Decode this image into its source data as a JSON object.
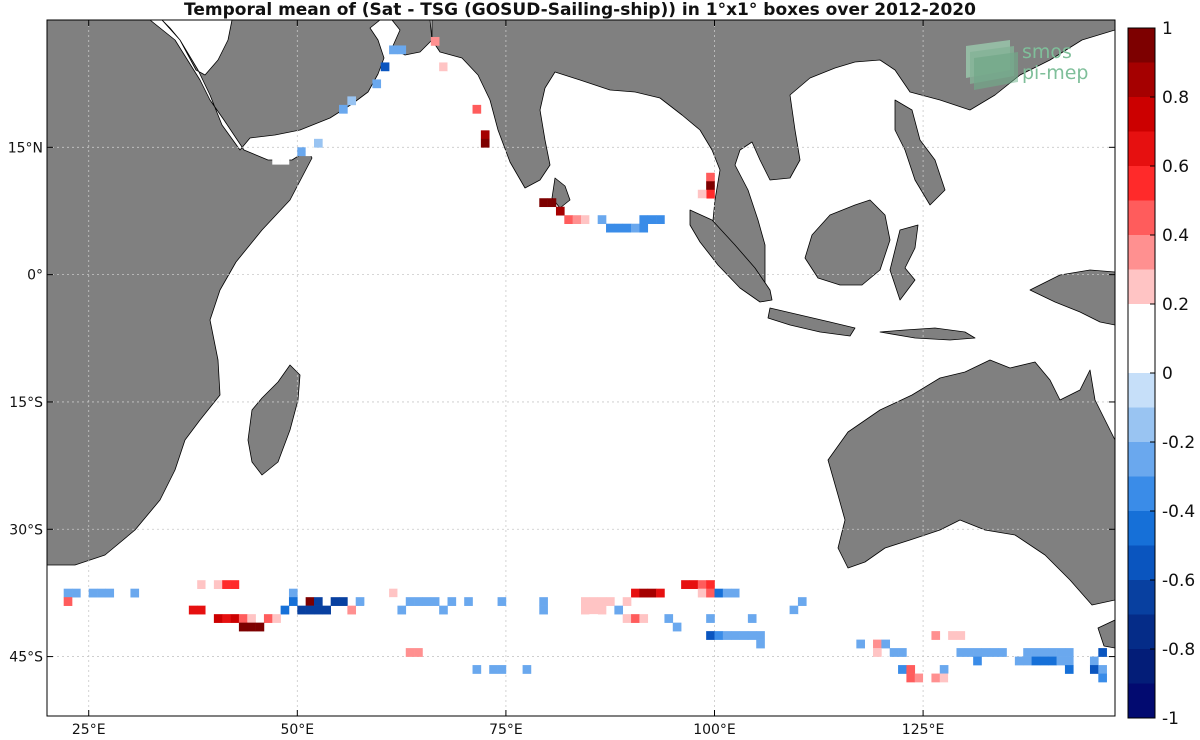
{
  "title": "Temporal mean of (Sat - TSG (GOSUD-Sailing-ship)) in 1°x1° boxes over 2012-2020",
  "logo": {
    "line1": "smos",
    "line2": "pi-mep",
    "color": "#7fbf9a"
  },
  "colors": {
    "land": "#808080",
    "grid": "#c8c8c8",
    "frame": "#000000"
  },
  "chart_data": {
    "type": "heatmap",
    "title": "Temporal mean of (Sat - TSG (GOSUD-Sailing-ship)) in 1°x1° boxes over 2012-2020",
    "xlim": [
      20,
      148
    ],
    "ylim": [
      -52,
      30
    ],
    "lon_ticks": [
      {
        "value": 25,
        "label": "25°E"
      },
      {
        "value": 50,
        "label": "50°E"
      },
      {
        "value": 75,
        "label": "75°E"
      },
      {
        "value": 100,
        "label": "100°E"
      },
      {
        "value": 125,
        "label": "125°E"
      }
    ],
    "lat_ticks": [
      {
        "value": 15,
        "label": "15°N"
      },
      {
        "value": 0,
        "label": "0°"
      },
      {
        "value": -15,
        "label": "15°S"
      },
      {
        "value": -30,
        "label": "30°S"
      },
      {
        "value": -45,
        "label": "45°S"
      }
    ],
    "colorbar": {
      "min": -1,
      "max": 1,
      "ticks": [
        "1",
        "0.8",
        "0.6",
        "0.4",
        "0.2",
        "0",
        "-0.2",
        "-0.4",
        "-0.6",
        "-0.8",
        "-1"
      ],
      "tick_values": [
        1,
        0.8,
        0.6,
        0.4,
        0.2,
        0,
        -0.2,
        -0.4,
        -0.6,
        -0.8,
        -1
      ],
      "colors": [
        "#7d0000",
        "#a50000",
        "#cc0000",
        "#e61010",
        "#ff2a2a",
        "#ff5c5c",
        "#ff9090",
        "#ffc4c4",
        "#ffffff",
        "#ffffff",
        "#c6dff9",
        "#99c4f2",
        "#6aa8ee",
        "#3a8ce8",
        "#1670d8",
        "#0a55bf",
        "#0840a0",
        "#052c88",
        "#031d78",
        "#020a70"
      ]
    },
    "cells": [
      [
        66,
        27,
        0.35
      ],
      [
        61,
        26,
        -0.25
      ],
      [
        62,
        26,
        -0.25
      ],
      [
        60,
        24,
        -0.55
      ],
      [
        67,
        24,
        0.3
      ],
      [
        68,
        24,
        0.2
      ],
      [
        59,
        22,
        -0.25
      ],
      [
        70,
        21,
        0.2
      ],
      [
        56,
        20,
        -0.15
      ],
      [
        71,
        19,
        0.45
      ],
      [
        55,
        19,
        -0.2
      ],
      [
        71,
        17,
        0.2
      ],
      [
        72,
        16,
        0.85
      ],
      [
        52,
        15,
        -0.15
      ],
      [
        72,
        15,
        0.9
      ],
      [
        50,
        14,
        -0.2
      ],
      [
        51,
        14,
        0.2
      ],
      [
        47,
        13,
        0.2
      ],
      [
        48,
        13,
        0.2
      ],
      [
        99,
        11,
        0.5
      ],
      [
        99,
        10,
        0.9
      ],
      [
        99,
        9,
        0.6
      ],
      [
        98,
        9,
        0.25
      ],
      [
        79,
        8,
        0.95
      ],
      [
        80,
        8,
        0.95
      ],
      [
        81,
        7,
        0.8
      ],
      [
        98,
        8,
        0.2
      ],
      [
        82,
        6,
        0.45
      ],
      [
        83,
        6,
        0.35
      ],
      [
        84,
        6,
        0.25
      ],
      [
        85,
        6,
        0.2
      ],
      [
        86,
        6,
        -0.25
      ],
      [
        91,
        6,
        -0.35
      ],
      [
        92,
        6,
        -0.35
      ],
      [
        93,
        6,
        -0.3
      ],
      [
        87,
        5,
        -0.35
      ],
      [
        88,
        5,
        -0.35
      ],
      [
        89,
        5,
        -0.35
      ],
      [
        90,
        5,
        -0.25
      ],
      [
        91,
        5,
        -0.3
      ],
      [
        32,
        -37,
        0.2
      ],
      [
        38,
        -37,
        0.3
      ],
      [
        39,
        -37,
        0.2
      ],
      [
        40,
        -37,
        0.3
      ],
      [
        41,
        -37,
        0.55
      ],
      [
        42,
        -37,
        0.55
      ],
      [
        45,
        -37,
        0.2
      ],
      [
        96,
        -37,
        0.7
      ],
      [
        97,
        -37,
        0.7
      ],
      [
        98,
        -37,
        0.5
      ],
      [
        99,
        -37,
        0.6
      ],
      [
        22,
        -38,
        -0.2
      ],
      [
        23,
        -38,
        -0.2
      ],
      [
        25,
        -38,
        -0.2
      ],
      [
        26,
        -38,
        -0.2
      ],
      [
        27,
        -38,
        -0.2
      ],
      [
        30,
        -38,
        -0.2
      ],
      [
        32,
        -38,
        0.2
      ],
      [
        46,
        -38,
        0.2
      ],
      [
        49,
        -38,
        -0.25
      ],
      [
        58,
        -38,
        0.2
      ],
      [
        60,
        -38,
        0.2
      ],
      [
        61,
        -38,
        0.3
      ],
      [
        62,
        -38,
        0.2
      ],
      [
        90,
        -38,
        0.7
      ],
      [
        91,
        -38,
        0.8
      ],
      [
        92,
        -38,
        0.8
      ],
      [
        93,
        -38,
        0.7
      ],
      [
        98,
        -38,
        0.3
      ],
      [
        99,
        -38,
        0.45
      ],
      [
        100,
        -38,
        -0.4
      ],
      [
        101,
        -38,
        -0.25
      ],
      [
        102,
        -38,
        -0.2
      ],
      [
        103,
        -38,
        0.2
      ],
      [
        104,
        -38,
        0.2
      ],
      [
        22,
        -39,
        0.45
      ],
      [
        49,
        -39,
        -0.4
      ],
      [
        51,
        -39,
        0.95
      ],
      [
        52,
        -39,
        -0.65
      ],
      [
        54,
        -39,
        -0.65
      ],
      [
        55,
        -39,
        -0.65
      ],
      [
        57,
        -39,
        -0.2
      ],
      [
        61,
        -39,
        0.2
      ],
      [
        62,
        -39,
        0.2
      ],
      [
        63,
        -39,
        -0.2
      ],
      [
        64,
        -39,
        -0.2
      ],
      [
        65,
        -39,
        -0.25
      ],
      [
        66,
        -39,
        -0.25
      ],
      [
        68,
        -39,
        -0.2
      ],
      [
        70,
        -39,
        -0.2
      ],
      [
        74,
        -39,
        -0.2
      ],
      [
        79,
        -39,
        -0.2
      ],
      [
        84,
        -39,
        0.25
      ],
      [
        85,
        -39,
        0.3
      ],
      [
        86,
        -39,
        0.25
      ],
      [
        87,
        -39,
        0.3
      ],
      [
        89,
        -39,
        0.3
      ],
      [
        110,
        -39,
        -0.2
      ],
      [
        37,
        -40,
        0.65
      ],
      [
        38,
        -40,
        0.65
      ],
      [
        39,
        -40,
        0.2
      ],
      [
        48,
        -40,
        -0.4
      ],
      [
        50,
        -40,
        -0.65
      ],
      [
        51,
        -40,
        -0.65
      ],
      [
        52,
        -40,
        -0.65
      ],
      [
        53,
        -40,
        -0.65
      ],
      [
        56,
        -40,
        0.4
      ],
      [
        58,
        -40,
        0.2
      ],
      [
        62,
        -40,
        -0.2
      ],
      [
        67,
        -40,
        -0.2
      ],
      [
        79,
        -40,
        -0.2
      ],
      [
        84,
        -40,
        0.3
      ],
      [
        85,
        -40,
        0.3
      ],
      [
        86,
        -40,
        0.3
      ],
      [
        88,
        -40,
        -0.2
      ],
      [
        109,
        -40,
        -0.2
      ],
      [
        40,
        -41,
        0.75
      ],
      [
        41,
        -41,
        0.7
      ],
      [
        42,
        -41,
        0.75
      ],
      [
        43,
        -41,
        0.5
      ],
      [
        44,
        -41,
        0.3
      ],
      [
        46,
        -41,
        0.45
      ],
      [
        47,
        -41,
        0.3
      ],
      [
        85,
        -41,
        0.2
      ],
      [
        89,
        -41,
        0.3
      ],
      [
        90,
        -41,
        0.45
      ],
      [
        91,
        -41,
        0.3
      ],
      [
        94,
        -41,
        -0.2
      ],
      [
        99,
        -41,
        -0.2
      ],
      [
        104,
        -41,
        -0.2
      ],
      [
        109,
        -41,
        0.2
      ],
      [
        43,
        -42,
        0.95
      ],
      [
        44,
        -42,
        0.95
      ],
      [
        45,
        -42,
        0.95
      ],
      [
        95,
        -42,
        -0.2
      ],
      [
        102,
        -42,
        0.2
      ],
      [
        103,
        -42,
        0.2
      ],
      [
        99,
        -43,
        -0.5
      ],
      [
        100,
        -43,
        -0.35
      ],
      [
        101,
        -43,
        -0.2
      ],
      [
        102,
        -43,
        -0.2
      ],
      [
        103,
        -43,
        -0.2
      ],
      [
        104,
        -43,
        -0.2
      ],
      [
        105,
        -43,
        -0.2
      ],
      [
        126,
        -43,
        0.4
      ],
      [
        128,
        -43,
        0.3
      ],
      [
        129,
        -43,
        0.3
      ],
      [
        105,
        -44,
        -0.2
      ],
      [
        117,
        -44,
        -0.2
      ],
      [
        119,
        -44,
        0.4
      ],
      [
        120,
        -44,
        -0.2
      ],
      [
        63,
        -45,
        0.35
      ],
      [
        64,
        -45,
        0.35
      ],
      [
        119,
        -45,
        0.25
      ],
      [
        121,
        -45,
        -0.2
      ],
      [
        122,
        -45,
        -0.2
      ],
      [
        129,
        -45,
        -0.2
      ],
      [
        130,
        -45,
        -0.2
      ],
      [
        131,
        -45,
        -0.2
      ],
      [
        132,
        -45,
        -0.2
      ],
      [
        133,
        -45,
        -0.2
      ],
      [
        134,
        -45,
        -0.2
      ],
      [
        137,
        -45,
        -0.25
      ],
      [
        138,
        -45,
        -0.2
      ],
      [
        139,
        -45,
        -0.2
      ],
      [
        140,
        -45,
        -0.2
      ],
      [
        141,
        -45,
        -0.2
      ],
      [
        142,
        -45,
        -0.2
      ],
      [
        146,
        -45,
        -0.55
      ],
      [
        120,
        -46,
        0.2
      ],
      [
        131,
        -46,
        -0.3
      ],
      [
        136,
        -46,
        -0.25
      ],
      [
        137,
        -46,
        -0.2
      ],
      [
        138,
        -46,
        -0.45
      ],
      [
        139,
        -46,
        -0.45
      ],
      [
        140,
        -46,
        -0.45
      ],
      [
        141,
        -46,
        -0.2
      ],
      [
        142,
        -46,
        -0.2
      ],
      [
        145,
        -46,
        -0.2
      ],
      [
        71,
        -47,
        -0.2
      ],
      [
        73,
        -47,
        -0.2
      ],
      [
        74,
        -47,
        -0.25
      ],
      [
        77,
        -47,
        -0.2
      ],
      [
        122,
        -47,
        -0.35
      ],
      [
        123,
        -47,
        0.45
      ],
      [
        127,
        -47,
        -0.2
      ],
      [
        142,
        -47,
        -0.45
      ],
      [
        145,
        -47,
        -0.5
      ],
      [
        146,
        -47,
        -0.2
      ],
      [
        123,
        -48,
        0.5
      ],
      [
        124,
        -48,
        0.35
      ],
      [
        125,
        -48,
        0.2
      ],
      [
        126,
        -48,
        0.4
      ],
      [
        127,
        -48,
        0.3
      ],
      [
        128,
        -48,
        0.2
      ],
      [
        129,
        -48,
        0.2
      ],
      [
        130,
        -48,
        0.2
      ],
      [
        131,
        -48,
        0.2
      ],
      [
        146,
        -48,
        -0.35
      ]
    ]
  }
}
